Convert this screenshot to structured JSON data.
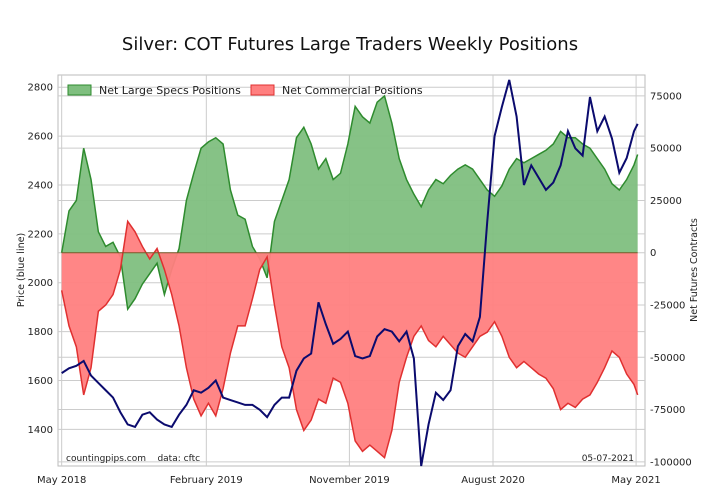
{
  "chart_data": {
    "type": "area",
    "title": "Silver: COT Futures Large Traders Weekly Positions",
    "ylabel_left": "Price (blue line)",
    "ylabel_right": "Net Futures Contracts",
    "x_tick_labels": [
      "May 2018",
      "February 2019",
      "November 2019",
      "August 2020",
      "May 2021"
    ],
    "x_tick_dates": [
      "2018-05-01",
      "2019-02-01",
      "2019-11-01",
      "2020-08-01",
      "2021-05-01"
    ],
    "x_range": [
      "2018-04-24",
      "2021-05-18"
    ],
    "price_axis": {
      "ylim": [
        1250,
        2850
      ],
      "ticks": [
        1400,
        1600,
        1800,
        2000,
        2200,
        2400,
        2600,
        2800
      ]
    },
    "net_axis": {
      "ylim": [
        -102000,
        85000
      ],
      "ticks": [
        75000,
        50000,
        25000,
        0,
        -25000,
        -50000,
        -75000,
        -100000
      ]
    },
    "grid": true,
    "legend": {
      "position": "top-left",
      "items": [
        "Net Large Specs Positions",
        "Net Commercial Positions"
      ]
    },
    "colors": {
      "specs_fill": "#7fbf7f",
      "specs_line": "#2e8b2e",
      "commercial_fill": "#ff7f7f",
      "commercial_line": "#e03030",
      "price_line": "#0b0b6e",
      "grid": "#cccccc"
    },
    "series": [
      {
        "name": "Net Large Specs Positions",
        "axis": "right",
        "points": [
          [
            "2018-05-01",
            0
          ],
          [
            "2018-05-15",
            20000
          ],
          [
            "2018-05-29",
            25000
          ],
          [
            "2018-06-12",
            50000
          ],
          [
            "2018-06-26",
            35000
          ],
          [
            "2018-07-10",
            10000
          ],
          [
            "2018-07-24",
            3000
          ],
          [
            "2018-08-07",
            5000
          ],
          [
            "2018-08-21",
            -2000
          ],
          [
            "2018-09-04",
            -27000
          ],
          [
            "2018-09-18",
            -22000
          ],
          [
            "2018-10-02",
            -15000
          ],
          [
            "2018-10-16",
            -10000
          ],
          [
            "2018-10-30",
            -5000
          ],
          [
            "2018-11-13",
            -20000
          ],
          [
            "2018-11-27",
            -8000
          ],
          [
            "2018-12-11",
            2000
          ],
          [
            "2018-12-25",
            25000
          ],
          [
            "2019-01-08",
            38000
          ],
          [
            "2019-01-22",
            50000
          ],
          [
            "2019-02-05",
            53000
          ],
          [
            "2019-02-19",
            55000
          ],
          [
            "2019-03-05",
            52000
          ],
          [
            "2019-03-19",
            30000
          ],
          [
            "2019-04-02",
            18000
          ],
          [
            "2019-04-16",
            16000
          ],
          [
            "2019-04-30",
            3000
          ],
          [
            "2019-05-14",
            -3000
          ],
          [
            "2019-05-28",
            -12000
          ],
          [
            "2019-06-11",
            15000
          ],
          [
            "2019-06-25",
            25000
          ],
          [
            "2019-07-09",
            35000
          ],
          [
            "2019-07-23",
            55000
          ],
          [
            "2019-08-06",
            60000
          ],
          [
            "2019-08-20",
            52000
          ],
          [
            "2019-09-03",
            40000
          ],
          [
            "2019-09-17",
            45000
          ],
          [
            "2019-10-01",
            35000
          ],
          [
            "2019-10-15",
            38000
          ],
          [
            "2019-10-29",
            52000
          ],
          [
            "2019-11-12",
            70000
          ],
          [
            "2019-11-26",
            65000
          ],
          [
            "2019-12-10",
            62000
          ],
          [
            "2019-12-24",
            72000
          ],
          [
            "2020-01-07",
            75000
          ],
          [
            "2020-01-21",
            62000
          ],
          [
            "2020-02-04",
            45000
          ],
          [
            "2020-02-18",
            35000
          ],
          [
            "2020-03-03",
            28000
          ],
          [
            "2020-03-17",
            22000
          ],
          [
            "2020-03-31",
            30000
          ],
          [
            "2020-04-14",
            35000
          ],
          [
            "2020-04-28",
            33000
          ],
          [
            "2020-05-12",
            37000
          ],
          [
            "2020-05-26",
            40000
          ],
          [
            "2020-06-09",
            42000
          ],
          [
            "2020-06-23",
            40000
          ],
          [
            "2020-07-07",
            35000
          ],
          [
            "2020-07-21",
            30000
          ],
          [
            "2020-08-04",
            27000
          ],
          [
            "2020-08-18",
            32000
          ],
          [
            "2020-09-01",
            40000
          ],
          [
            "2020-09-15",
            45000
          ],
          [
            "2020-09-29",
            43000
          ],
          [
            "2020-10-13",
            45000
          ],
          [
            "2020-10-27",
            47000
          ],
          [
            "2020-11-10",
            49000
          ],
          [
            "2020-11-24",
            52000
          ],
          [
            "2020-12-08",
            58000
          ],
          [
            "2020-12-22",
            55000
          ],
          [
            "2021-01-05",
            55000
          ],
          [
            "2021-01-19",
            52000
          ],
          [
            "2021-02-02",
            50000
          ],
          [
            "2021-02-16",
            45000
          ],
          [
            "2021-03-02",
            40000
          ],
          [
            "2021-03-16",
            33000
          ],
          [
            "2021-03-30",
            30000
          ],
          [
            "2021-04-13",
            35000
          ],
          [
            "2021-04-27",
            42000
          ],
          [
            "2021-05-04",
            47000
          ]
        ]
      },
      {
        "name": "Net Commercial Positions",
        "axis": "right",
        "points": [
          [
            "2018-05-01",
            -18000
          ],
          [
            "2018-05-15",
            -35000
          ],
          [
            "2018-05-29",
            -45000
          ],
          [
            "2018-06-12",
            -68000
          ],
          [
            "2018-06-26",
            -55000
          ],
          [
            "2018-07-10",
            -28000
          ],
          [
            "2018-07-24",
            -25000
          ],
          [
            "2018-08-07",
            -20000
          ],
          [
            "2018-08-21",
            -8000
          ],
          [
            "2018-09-04",
            15000
          ],
          [
            "2018-09-18",
            10000
          ],
          [
            "2018-10-02",
            3000
          ],
          [
            "2018-10-16",
            -3000
          ],
          [
            "2018-10-30",
            2000
          ],
          [
            "2018-11-13",
            -8000
          ],
          [
            "2018-11-27",
            -20000
          ],
          [
            "2018-12-11",
            -35000
          ],
          [
            "2018-12-25",
            -55000
          ],
          [
            "2019-01-08",
            -70000
          ],
          [
            "2019-01-22",
            -78000
          ],
          [
            "2019-02-05",
            -72000
          ],
          [
            "2019-02-19",
            -78000
          ],
          [
            "2019-03-05",
            -65000
          ],
          [
            "2019-03-19",
            -48000
          ],
          [
            "2019-04-02",
            -35000
          ],
          [
            "2019-04-16",
            -35000
          ],
          [
            "2019-04-30",
            -22000
          ],
          [
            "2019-05-14",
            -8000
          ],
          [
            "2019-05-28",
            -2000
          ],
          [
            "2019-06-11",
            -25000
          ],
          [
            "2019-06-25",
            -45000
          ],
          [
            "2019-07-09",
            -55000
          ],
          [
            "2019-07-23",
            -75000
          ],
          [
            "2019-08-06",
            -85000
          ],
          [
            "2019-08-20",
            -80000
          ],
          [
            "2019-09-03",
            -70000
          ],
          [
            "2019-09-17",
            -72000
          ],
          [
            "2019-10-01",
            -60000
          ],
          [
            "2019-10-15",
            -62000
          ],
          [
            "2019-10-29",
            -72000
          ],
          [
            "2019-11-12",
            -90000
          ],
          [
            "2019-11-26",
            -95000
          ],
          [
            "2019-12-10",
            -92000
          ],
          [
            "2019-12-24",
            -95000
          ],
          [
            "2020-01-07",
            -98000
          ],
          [
            "2020-01-21",
            -85000
          ],
          [
            "2020-02-04",
            -62000
          ],
          [
            "2020-02-18",
            -50000
          ],
          [
            "2020-03-03",
            -40000
          ],
          [
            "2020-03-17",
            -35000
          ],
          [
            "2020-03-31",
            -42000
          ],
          [
            "2020-04-14",
            -45000
          ],
          [
            "2020-04-28",
            -40000
          ],
          [
            "2020-05-12",
            -44000
          ],
          [
            "2020-05-26",
            -48000
          ],
          [
            "2020-06-09",
            -50000
          ],
          [
            "2020-06-23",
            -45000
          ],
          [
            "2020-07-07",
            -40000
          ],
          [
            "2020-07-21",
            -38000
          ],
          [
            "2020-08-04",
            -33000
          ],
          [
            "2020-08-18",
            -40000
          ],
          [
            "2020-09-01",
            -50000
          ],
          [
            "2020-09-15",
            -55000
          ],
          [
            "2020-09-29",
            -52000
          ],
          [
            "2020-10-13",
            -55000
          ],
          [
            "2020-10-27",
            -58000
          ],
          [
            "2020-11-10",
            -60000
          ],
          [
            "2020-11-24",
            -65000
          ],
          [
            "2020-12-08",
            -75000
          ],
          [
            "2020-12-22",
            -72000
          ],
          [
            "2021-01-05",
            -74000
          ],
          [
            "2021-01-19",
            -70000
          ],
          [
            "2021-02-02",
            -68000
          ],
          [
            "2021-02-16",
            -62000
          ],
          [
            "2021-03-02",
            -55000
          ],
          [
            "2021-03-16",
            -47000
          ],
          [
            "2021-03-30",
            -50000
          ],
          [
            "2021-04-13",
            -58000
          ],
          [
            "2021-04-27",
            -63000
          ],
          [
            "2021-05-04",
            -68000
          ]
        ]
      },
      {
        "name": "Price",
        "axis": "left",
        "points": [
          [
            "2018-05-01",
            1630
          ],
          [
            "2018-05-15",
            1650
          ],
          [
            "2018-05-29",
            1660
          ],
          [
            "2018-06-12",
            1680
          ],
          [
            "2018-06-26",
            1620
          ],
          [
            "2018-07-10",
            1590
          ],
          [
            "2018-07-24",
            1560
          ],
          [
            "2018-08-07",
            1530
          ],
          [
            "2018-08-21",
            1470
          ],
          [
            "2018-09-04",
            1420
          ],
          [
            "2018-09-18",
            1410
          ],
          [
            "2018-10-02",
            1460
          ],
          [
            "2018-10-16",
            1470
          ],
          [
            "2018-10-30",
            1440
          ],
          [
            "2018-11-13",
            1420
          ],
          [
            "2018-11-27",
            1410
          ],
          [
            "2018-12-11",
            1460
          ],
          [
            "2018-12-25",
            1500
          ],
          [
            "2019-01-08",
            1560
          ],
          [
            "2019-01-22",
            1550
          ],
          [
            "2019-02-05",
            1570
          ],
          [
            "2019-02-19",
            1600
          ],
          [
            "2019-03-05",
            1530
          ],
          [
            "2019-03-19",
            1520
          ],
          [
            "2019-04-02",
            1510
          ],
          [
            "2019-04-16",
            1500
          ],
          [
            "2019-04-30",
            1500
          ],
          [
            "2019-05-14",
            1480
          ],
          [
            "2019-05-28",
            1450
          ],
          [
            "2019-06-11",
            1500
          ],
          [
            "2019-06-25",
            1530
          ],
          [
            "2019-07-09",
            1530
          ],
          [
            "2019-07-23",
            1640
          ],
          [
            "2019-08-06",
            1690
          ],
          [
            "2019-08-20",
            1710
          ],
          [
            "2019-09-03",
            1920
          ],
          [
            "2019-09-17",
            1830
          ],
          [
            "2019-10-01",
            1750
          ],
          [
            "2019-10-15",
            1770
          ],
          [
            "2019-10-29",
            1800
          ],
          [
            "2019-11-12",
            1700
          ],
          [
            "2019-11-26",
            1690
          ],
          [
            "2019-12-10",
            1700
          ],
          [
            "2019-12-24",
            1780
          ],
          [
            "2020-01-07",
            1810
          ],
          [
            "2020-01-21",
            1800
          ],
          [
            "2020-02-04",
            1760
          ],
          [
            "2020-02-18",
            1800
          ],
          [
            "2020-03-03",
            1690
          ],
          [
            "2020-03-17",
            1250
          ],
          [
            "2020-03-31",
            1420
          ],
          [
            "2020-04-14",
            1550
          ],
          [
            "2020-04-28",
            1520
          ],
          [
            "2020-05-12",
            1560
          ],
          [
            "2020-05-26",
            1740
          ],
          [
            "2020-06-09",
            1790
          ],
          [
            "2020-06-23",
            1760
          ],
          [
            "2020-07-07",
            1860
          ],
          [
            "2020-07-21",
            2250
          ],
          [
            "2020-08-04",
            2600
          ],
          [
            "2020-08-18",
            2720
          ],
          [
            "2020-09-01",
            2830
          ],
          [
            "2020-09-15",
            2680
          ],
          [
            "2020-09-29",
            2400
          ],
          [
            "2020-10-13",
            2480
          ],
          [
            "2020-10-27",
            2430
          ],
          [
            "2020-11-10",
            2380
          ],
          [
            "2020-11-24",
            2410
          ],
          [
            "2020-12-08",
            2480
          ],
          [
            "2020-12-22",
            2620
          ],
          [
            "2021-01-05",
            2550
          ],
          [
            "2021-01-19",
            2520
          ],
          [
            "2021-02-02",
            2760
          ],
          [
            "2021-02-16",
            2620
          ],
          [
            "2021-03-02",
            2680
          ],
          [
            "2021-03-16",
            2590
          ],
          [
            "2021-03-30",
            2450
          ],
          [
            "2021-04-13",
            2510
          ],
          [
            "2021-04-27",
            2620
          ],
          [
            "2021-05-04",
            2650
          ]
        ]
      }
    ],
    "annotations": {
      "source": "countingpips.com    data: cftc",
      "date": "05-07-2021"
    }
  }
}
